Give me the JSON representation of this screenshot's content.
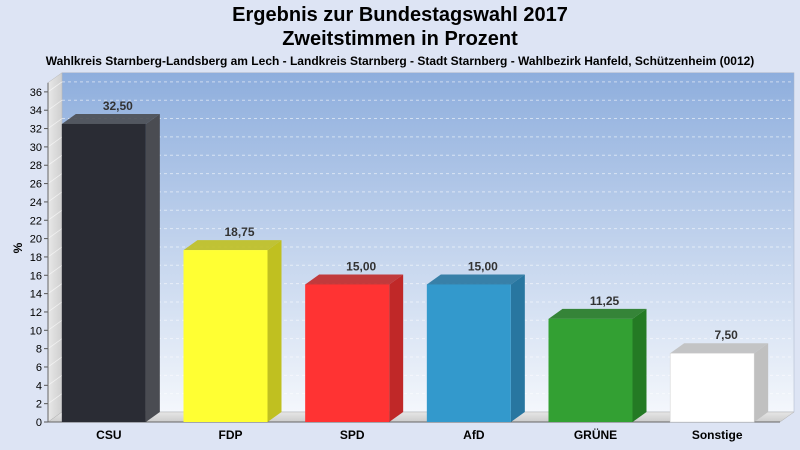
{
  "header": {
    "title_line1": "Ergebnis zur Bundestagswahl 2017",
    "title_line2": "Zweitstimmen in Prozent",
    "subtitle": "Wahlkreis Starnberg-Landsberg am Lech - Landkreis Starnberg - Stadt Starnberg - Wahlbezirk Hanfeld, Schützenheim (0012)"
  },
  "chart_data": {
    "type": "bar",
    "title": "Ergebnis zur Bundestagswahl 2017 Zweitstimmen in Prozent",
    "ylabel": "%",
    "xlabel": "",
    "ylim": [
      0,
      37
    ],
    "yticks": [
      0,
      2,
      4,
      6,
      8,
      10,
      12,
      14,
      16,
      18,
      20,
      22,
      24,
      26,
      28,
      30,
      32,
      34,
      36
    ],
    "grid": true,
    "categories": [
      "CSU",
      "FDP",
      "SPD",
      "AfD",
      "GRÜNE",
      "Sonstige"
    ],
    "values": [
      32.5,
      18.75,
      15.0,
      15.0,
      11.25,
      7.5
    ],
    "value_labels": [
      "32,50",
      "18,75",
      "15,00",
      "15,00",
      "11,25",
      "7,50"
    ],
    "colors": [
      "#2a2c34",
      "#ffff33",
      "#ff3333",
      "#3399cc",
      "#33a033",
      "#ffffff"
    ],
    "side_colors": [
      "#4a4c52",
      "#c0c020",
      "#c02828",
      "#2876a0",
      "#247a24",
      "#c0c0c0"
    ]
  }
}
